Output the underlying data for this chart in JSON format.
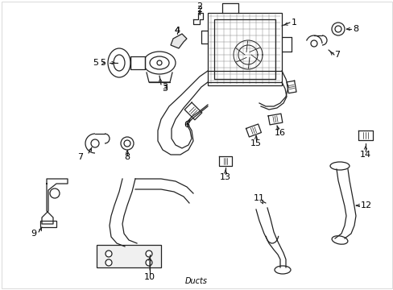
{
  "bg_color": "#ffffff",
  "line_color": "#222222",
  "text_color": "#000000",
  "fig_width": 4.89,
  "fig_height": 3.6,
  "dpi": 100,
  "border_color": "#cccccc"
}
